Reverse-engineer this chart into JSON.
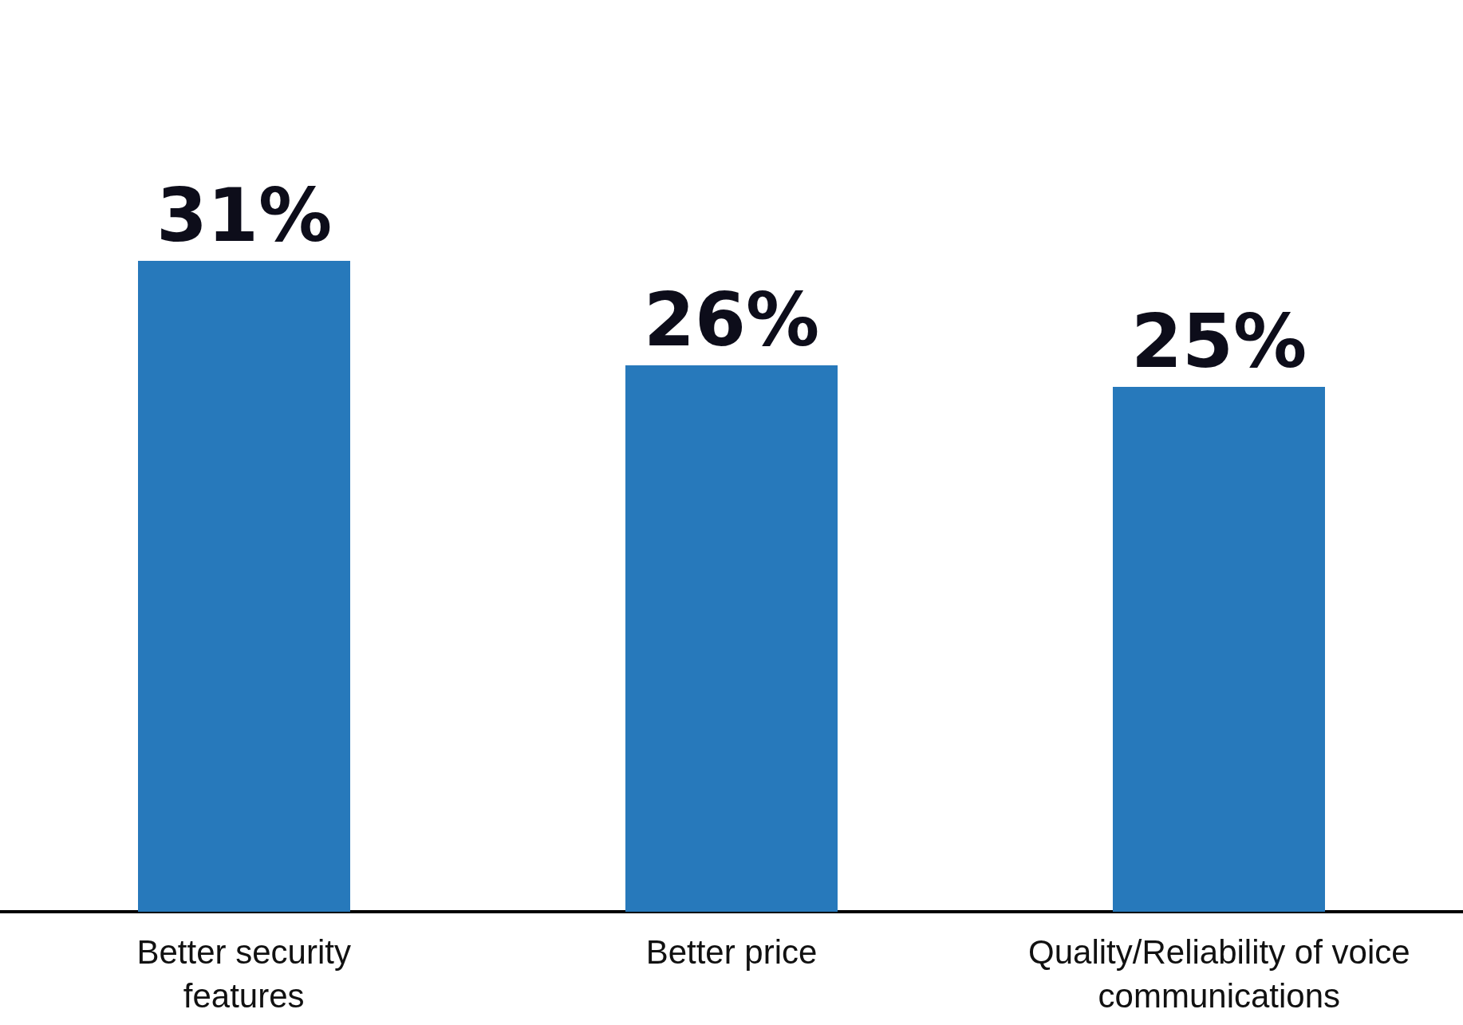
{
  "chart_data": {
    "type": "bar",
    "categories": [
      "Better security features",
      "Better price",
      "Quality/Reliability of voice communications"
    ],
    "values": [
      31,
      26,
      25
    ],
    "color": "#2779bb",
    "value_labels": [
      "31%",
      "26%",
      "25%"
    ],
    "tick_labels": "x"
  }
}
